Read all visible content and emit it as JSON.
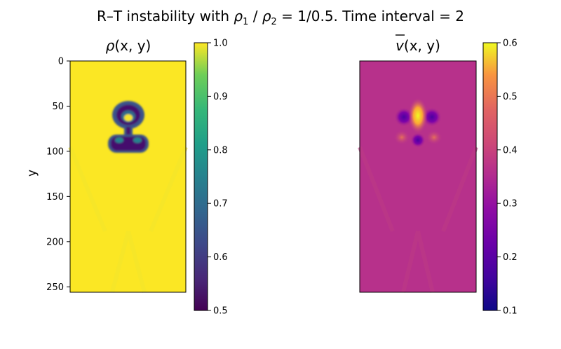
{
  "figure": {
    "title_prefix": "R–T instability with ",
    "rho_symbol": "ρ",
    "sub_1": "1",
    "sub_2": "2",
    "title_mid": " / ",
    "title_suffix": " = 1/0.5. Time interval = 2"
  },
  "chart_data": [
    {
      "type": "heatmap",
      "title_main": "ρ",
      "title_args": "(x, y)",
      "ylabel": "y",
      "y_ticks": [
        0,
        50,
        100,
        150,
        200,
        250
      ],
      "ylim": [
        256,
        0
      ],
      "colormap": "viridis",
      "colorbar": {
        "ticks": [
          "0.5",
          "0.6",
          "0.7",
          "0.8",
          "0.9",
          "1.0"
        ],
        "range": [
          0.5,
          1.0
        ]
      }
    },
    {
      "type": "heatmap",
      "title_main": "v",
      "title_args": "(x, y)",
      "title_overline": true,
      "colormap": "plasma",
      "colorbar": {
        "ticks": [
          "0.1",
          "0.2",
          "0.3",
          "0.4",
          "0.5",
          "0.6"
        ],
        "range": [
          0.1,
          0.6
        ]
      }
    }
  ]
}
